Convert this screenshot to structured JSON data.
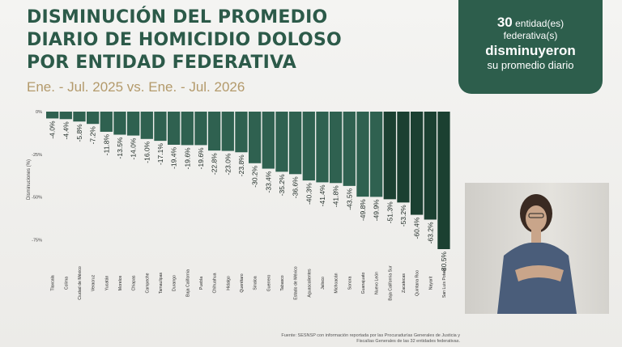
{
  "title_lines": [
    "DISMINUCIÓN DEL PROMEDIO",
    "DIARIO DE HOMICIDIO DOLOSO",
    "POR ENTIDAD FEDERATIVA"
  ],
  "subtitle": "Ene. - Jul. 2025 vs. Ene. - Jul. 2026",
  "summary": {
    "count": "30",
    "count_suffix": " entidad(es)",
    "line2": "federativa(s)",
    "line3": "disminuyeron",
    "line4": "su promedio diario"
  },
  "source": "Fuente: SESNSP con información reportada por las Procuradurías Generales de Justicia y Fiscalías Generales de las 32 entidades federativas.",
  "colors": {
    "bar_light": "#2f6150",
    "bar_dark": "#1b4031",
    "title": "#2c5a49",
    "accent": "#b39a6b"
  },
  "chart_data": {
    "type": "bar",
    "ylabel": "Disminuciones (%)",
    "ylim": [
      -80.5,
      0
    ],
    "yticks": [
      0,
      -25,
      -50,
      -75
    ],
    "ytick_labels": [
      "0%",
      "-25%",
      "-50%",
      "-75%"
    ],
    "categories": [
      "Tlaxcala",
      "Colima",
      "Ciudad de México",
      "Veracruz",
      "Yucatán",
      "Morelos",
      "Chiapas",
      "Campeche",
      "Tamaulipas",
      "Durango",
      "Baja California",
      "Puebla",
      "Chihuahua",
      "Hidalgo",
      "Querétaro",
      "Sinaloa",
      "Guerrero",
      "Tabasco",
      "Estado de México",
      "Aguascalientes",
      "Jalisco",
      "Michoacán",
      "Sonora",
      "Guanajuato",
      "Nuevo León",
      "Baja California Sur",
      "Zacatecas",
      "Quintana Roo",
      "Nayarit",
      "San Luis Potosí"
    ],
    "values": [
      -4.0,
      -4.4,
      -5.8,
      -7.2,
      -11.8,
      -13.5,
      -14.0,
      -16.0,
      -17.1,
      -19.4,
      -19.6,
      -19.6,
      -22.8,
      -23.0,
      -23.8,
      -30.2,
      -33.4,
      -35.2,
      -36.6,
      -40.3,
      -41.4,
      -41.8,
      -43.5,
      -49.8,
      -49.9,
      -51.3,
      -53.2,
      -60.4,
      -63.2,
      -80.5
    ],
    "labels": [
      "-4.0%",
      "-4.4%",
      "-5.8%",
      "-7.2%",
      "-11.8%",
      "-13.5%",
      "-14.0%",
      "-16.0%",
      "-17.1%",
      "-19.4%",
      "-19.6%",
      "-19.6%",
      "-22.8%",
      "-23.0%",
      "-23.8%",
      "-30.2%",
      "-33.4%",
      "-35.2%",
      "-36.6%",
      "-40.3%",
      "-41.4%",
      "-41.8%",
      "-43.5%",
      "-49.8%",
      "-49.9%",
      "-51.3%",
      "-53.2%",
      "-60.4%",
      "-63.2%",
      "-80.5%"
    ]
  }
}
